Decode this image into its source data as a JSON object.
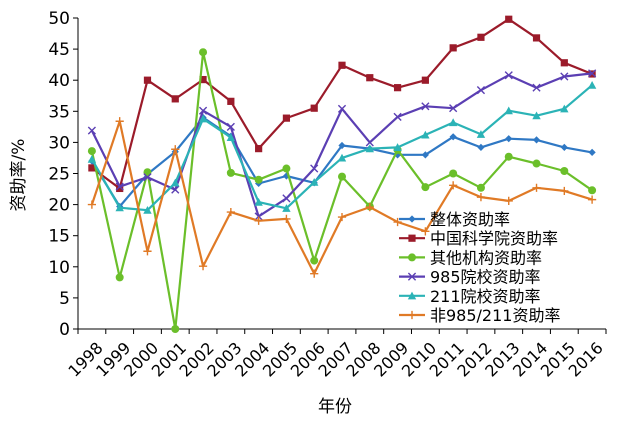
{
  "chart_data": {
    "type": "line",
    "title": "",
    "xlabel": "年份",
    "ylabel": "资助率/%",
    "x": [
      "1998",
      "1999",
      "2000",
      "2001",
      "2002",
      "2003",
      "2004",
      "2005",
      "2006",
      "2007",
      "2008",
      "2009",
      "2010",
      "2011",
      "2012",
      "2013",
      "2014",
      "2015",
      "2016"
    ],
    "ylim": [
      0,
      50
    ],
    "yticks": [
      0,
      5,
      10,
      15,
      20,
      25,
      30,
      35,
      40,
      45,
      50
    ],
    "grid": false,
    "legend_position": "right",
    "series": [
      {
        "name": "整体资助率",
        "color": "#2f78c4",
        "marker": "diamond",
        "values": [
          27.0,
          19.7,
          24.9,
          28.5,
          34.0,
          31.0,
          23.4,
          24.6,
          23.5,
          29.5,
          29.0,
          28.0,
          28.0,
          30.9,
          29.2,
          30.6,
          30.4,
          29.2,
          28.4
        ]
      },
      {
        "name": "中国科学院资助率",
        "color": "#9b1b2a",
        "marker": "square",
        "values": [
          25.9,
          22.6,
          40.0,
          37.0,
          40.1,
          36.6,
          29.0,
          33.9,
          35.5,
          42.4,
          40.4,
          38.8,
          40.0,
          45.2,
          46.9,
          49.8,
          46.8,
          42.8,
          41.0
        ]
      },
      {
        "name": "其他机构资助率",
        "color": "#6bbf2a",
        "marker": "circle",
        "values": [
          28.6,
          8.3,
          25.2,
          0,
          44.5,
          25.1,
          24.0,
          25.8,
          11.0,
          24.5,
          19.7,
          28.8,
          22.8,
          25.0,
          22.7,
          27.7,
          26.6,
          25.4,
          22.3
        ]
      },
      {
        "name": "985院校资助率",
        "color": "#5b3fb3",
        "marker": "x",
        "values": [
          31.9,
          22.9,
          24.4,
          22.4,
          35.1,
          32.5,
          18.1,
          21.0,
          25.8,
          35.4,
          30.0,
          34.1,
          35.8,
          35.5,
          38.4,
          40.8,
          38.8,
          40.6,
          41.1
        ]
      },
      {
        "name": "211院校资助率",
        "color": "#2bb3b6",
        "marker": "triangle",
        "values": [
          27.3,
          19.5,
          19.1,
          23.5,
          33.8,
          30.8,
          20.4,
          19.4,
          23.6,
          27.5,
          29.0,
          29.2,
          31.2,
          33.2,
          31.3,
          35.1,
          34.3,
          35.4,
          39.2
        ]
      },
      {
        "name": "非985/211资助率",
        "color": "#e07a26",
        "marker": "plus",
        "values": [
          20.0,
          33.4,
          12.5,
          28.9,
          10.1,
          18.8,
          17.4,
          17.7,
          8.9,
          18.0,
          19.6,
          17.2,
          15.7,
          23.1,
          21.2,
          20.6,
          22.7,
          22.2,
          20.8
        ]
      }
    ]
  }
}
